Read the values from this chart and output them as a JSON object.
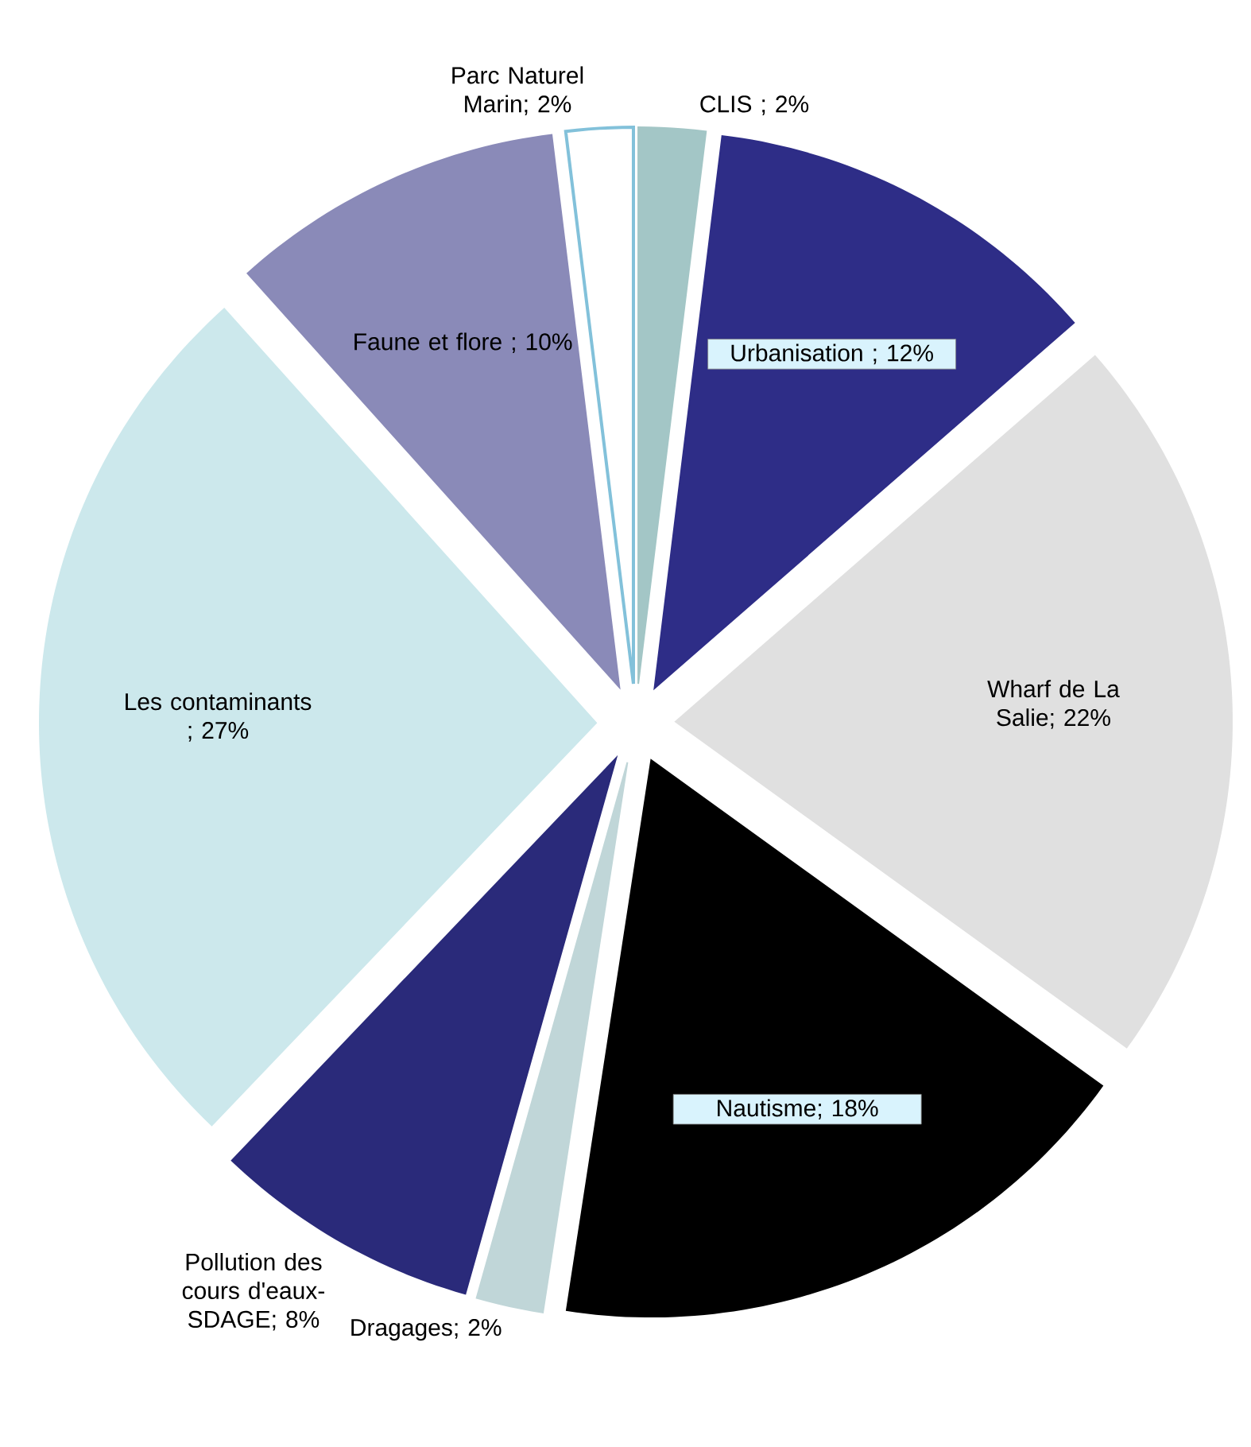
{
  "chart_data": {
    "type": "pie",
    "categories": [
      "CLIS",
      "Urbanisation",
      "Wharf de La Salie",
      "Nautisme",
      "Dragages",
      "Pollution des cours d'eaux-SDAGE",
      "Les contaminants",
      "Faune et flore",
      "Parc Naturel Marin"
    ],
    "values": [
      2,
      12,
      22,
      18,
      2,
      8,
      27,
      10,
      2
    ],
    "value_labels": [
      " ; 2%",
      " ; 12%",
      "; 22%",
      "; 18%",
      "; 2%",
      "; 8%",
      " ; 27%",
      " ; 10%",
      "; 2%"
    ],
    "colors": [
      "#a3c6c6",
      "#2e2d87",
      "#e0e0e0",
      "#000000",
      "#c0d6d8",
      "#2a2a7a",
      "#cce8ec",
      "#8a8ab8",
      "#ffffff"
    ]
  }
}
